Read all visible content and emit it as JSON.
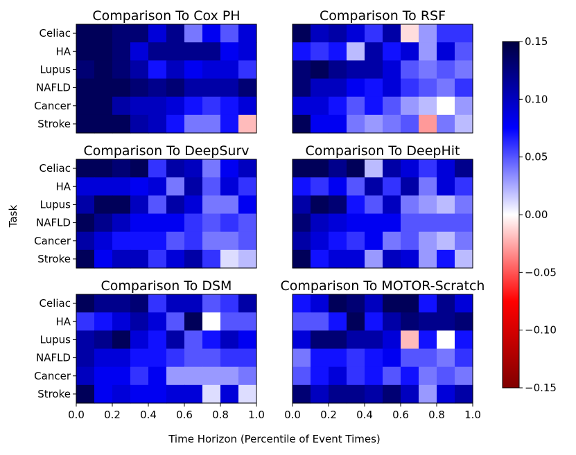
{
  "chart_data": {
    "type": "heatmap",
    "xlabel": "Time Horizon (Percentile of Event Times)",
    "ylabel": "Task",
    "tasks": [
      "Celiac",
      "HA",
      "Lupus",
      "NAFLD",
      "Cancer",
      "Stroke"
    ],
    "xlim": [
      0.0,
      1.0
    ],
    "x_ticks": [
      "0.0",
      "0.2",
      "0.4",
      "0.6",
      "0.8",
      "1.0"
    ],
    "n_bins": 10,
    "colorbar": {
      "vmin": -0.15,
      "vmax": 0.15,
      "ticks": [
        "0.15",
        "0.10",
        "0.05",
        "0.00",
        "−0.05",
        "−0.10",
        "−0.15"
      ],
      "colormap": "seismic_r",
      "colors": {
        "neg_end": "#800000",
        "neg_mid": "#ff0000",
        "zero": "#ffffff",
        "pos_mid": "#0000ff",
        "pos_end": "#000040"
      }
    },
    "panels": [
      {
        "title": "Comparison To Cox PH",
        "values": [
          [
            0.14,
            0.14,
            0.13,
            0.13,
            0.09,
            0.12,
            0.04,
            0.08,
            0.05,
            0.09
          ],
          [
            0.14,
            0.14,
            0.13,
            0.09,
            0.12,
            0.12,
            0.12,
            0.12,
            0.08,
            0.09
          ],
          [
            0.13,
            0.14,
            0.13,
            0.11,
            0.07,
            0.1,
            0.08,
            0.09,
            0.09,
            0.06
          ],
          [
            0.14,
            0.14,
            0.14,
            0.13,
            0.12,
            0.13,
            0.11,
            0.11,
            0.11,
            0.13
          ],
          [
            0.14,
            0.14,
            0.11,
            0.1,
            0.1,
            0.09,
            0.07,
            0.06,
            0.07,
            0.09
          ],
          [
            0.14,
            0.14,
            0.14,
            0.11,
            0.1,
            0.07,
            0.04,
            0.04,
            0.07,
            -0.02
          ]
        ]
      },
      {
        "title": "Comparison To RSF",
        "values": [
          [
            0.14,
            0.1,
            0.11,
            0.09,
            0.06,
            0.11,
            -0.01,
            0.03,
            0.06,
            0.06
          ],
          [
            0.07,
            0.06,
            0.07,
            0.02,
            0.11,
            0.07,
            0.09,
            0.03,
            0.09,
            0.05
          ],
          [
            0.13,
            0.14,
            0.12,
            0.11,
            0.11,
            0.09,
            0.05,
            0.04,
            0.05,
            0.04
          ],
          [
            0.13,
            0.1,
            0.1,
            0.08,
            0.07,
            0.09,
            0.06,
            0.05,
            0.04,
            0.06
          ],
          [
            0.09,
            0.09,
            0.07,
            0.05,
            0.07,
            0.05,
            0.03,
            0.02,
            0.0,
            0.03
          ],
          [
            0.14,
            0.08,
            0.08,
            0.04,
            0.03,
            0.04,
            0.05,
            -0.03,
            0.04,
            0.02
          ]
        ]
      },
      {
        "title": "Comparison To DeepSurv",
        "values": [
          [
            0.14,
            0.14,
            0.13,
            0.14,
            0.06,
            0.11,
            0.1,
            0.04,
            0.08,
            0.1
          ],
          [
            0.09,
            0.09,
            0.09,
            0.08,
            0.09,
            0.04,
            0.11,
            0.05,
            0.09,
            0.06
          ],
          [
            0.11,
            0.14,
            0.14,
            0.1,
            0.05,
            0.11,
            0.09,
            0.04,
            0.04,
            0.08
          ],
          [
            0.14,
            0.12,
            0.1,
            0.08,
            0.08,
            0.08,
            0.06,
            0.05,
            0.06,
            0.05
          ],
          [
            0.11,
            0.09,
            0.07,
            0.07,
            0.07,
            0.05,
            0.06,
            0.04,
            0.04,
            0.05
          ],
          [
            0.14,
            0.08,
            0.1,
            0.1,
            0.06,
            0.09,
            0.11,
            0.06,
            0.01,
            0.02
          ]
        ]
      },
      {
        "title": "Comparison To DeepHit",
        "values": [
          [
            0.14,
            0.14,
            0.12,
            0.14,
            0.02,
            0.11,
            0.09,
            0.06,
            0.09,
            0.12
          ],
          [
            0.07,
            0.06,
            0.08,
            0.05,
            0.11,
            0.06,
            0.11,
            0.04,
            0.09,
            0.06
          ],
          [
            0.11,
            0.14,
            0.13,
            0.07,
            0.05,
            0.1,
            0.04,
            0.03,
            0.02,
            0.04
          ],
          [
            0.13,
            0.1,
            0.09,
            0.08,
            0.08,
            0.08,
            0.05,
            0.05,
            0.05,
            0.05
          ],
          [
            0.11,
            0.09,
            0.07,
            0.06,
            0.08,
            0.04,
            0.05,
            0.03,
            0.02,
            0.04
          ],
          [
            0.14,
            0.07,
            0.09,
            0.09,
            0.03,
            0.1,
            0.09,
            0.03,
            0.07,
            0.02
          ]
        ]
      },
      {
        "title": "Comparison To DSM",
        "values": [
          [
            0.14,
            0.12,
            0.12,
            0.13,
            0.06,
            0.1,
            0.1,
            0.05,
            0.06,
            0.11
          ],
          [
            0.06,
            0.07,
            0.09,
            0.11,
            0.09,
            0.05,
            0.14,
            0.0,
            0.05,
            0.05
          ],
          [
            0.11,
            0.12,
            0.14,
            0.09,
            0.07,
            0.11,
            0.05,
            0.07,
            0.1,
            0.08
          ],
          [
            0.11,
            0.09,
            0.09,
            0.07,
            0.07,
            0.06,
            0.05,
            0.05,
            0.06,
            0.06
          ],
          [
            0.1,
            0.08,
            0.08,
            0.06,
            0.08,
            0.03,
            0.03,
            0.03,
            0.03,
            0.04
          ],
          [
            0.14,
            0.08,
            0.09,
            0.08,
            0.08,
            0.09,
            0.09,
            0.01,
            0.09,
            0.01
          ]
        ]
      },
      {
        "title": "Comparison To MOTOR-Scratch",
        "values": [
          [
            0.07,
            0.09,
            0.14,
            0.13,
            0.1,
            0.14,
            0.14,
            0.07,
            0.12,
            0.09
          ],
          [
            0.05,
            0.05,
            0.07,
            0.14,
            0.07,
            0.11,
            0.13,
            0.12,
            0.12,
            0.13
          ],
          [
            0.09,
            0.13,
            0.13,
            0.11,
            0.11,
            0.09,
            -0.02,
            0.07,
            0.0,
            0.07
          ],
          [
            0.04,
            0.07,
            0.07,
            0.06,
            0.07,
            0.08,
            0.05,
            0.05,
            0.04,
            0.06
          ],
          [
            0.05,
            0.07,
            0.09,
            0.06,
            0.07,
            0.05,
            0.07,
            0.04,
            0.05,
            0.04
          ],
          [
            0.13,
            0.1,
            0.12,
            0.12,
            0.11,
            0.13,
            0.1,
            0.03,
            0.09,
            0.11
          ]
        ]
      }
    ]
  }
}
